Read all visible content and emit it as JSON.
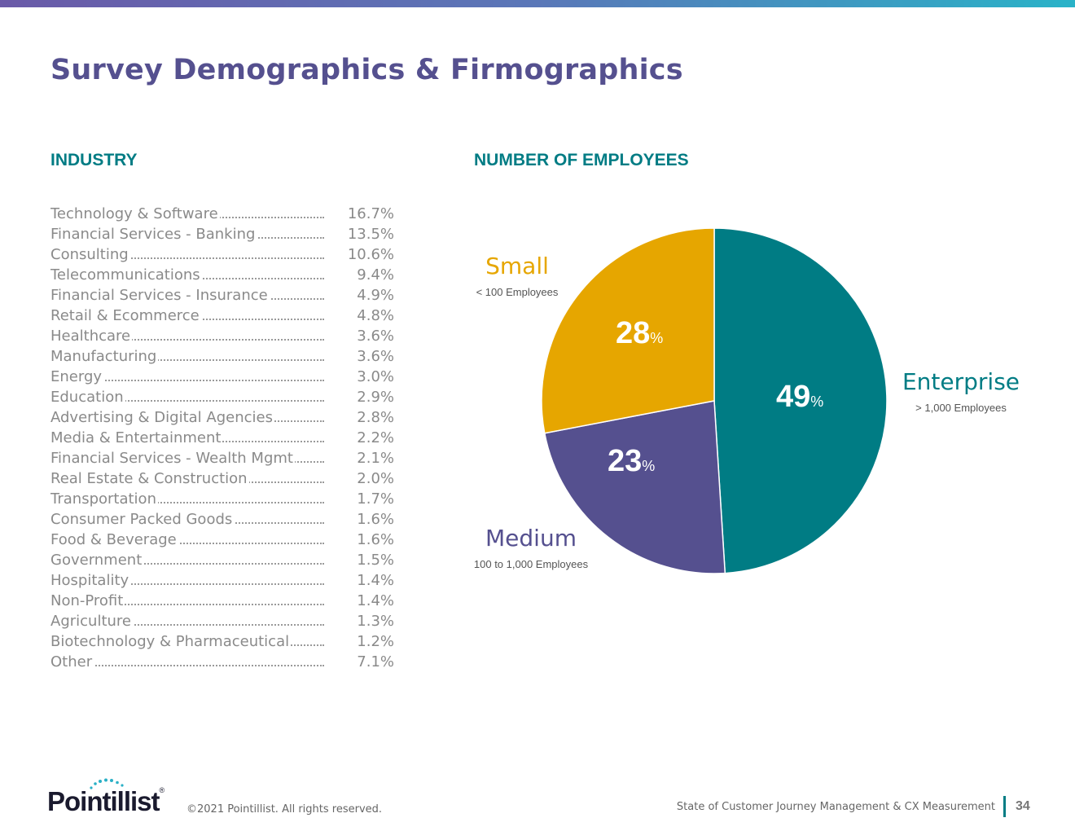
{
  "page": {
    "title": "Survey Demographics & Firmographics"
  },
  "industry": {
    "heading": "INDUSTRY",
    "items": [
      {
        "name": "Technology & Software",
        "value": "16.7%"
      },
      {
        "name": "Financial Services - Banking",
        "value": "13.5%"
      },
      {
        "name": "Consulting",
        "value": "10.6%"
      },
      {
        "name": "Telecommunications",
        "value": "9.4%"
      },
      {
        "name": "Financial Services - Insurance",
        "value": "4.9%"
      },
      {
        "name": "Retail & Ecommerce",
        "value": "4.8%"
      },
      {
        "name": "Healthcare",
        "value": "3.6%"
      },
      {
        "name": "Manufacturing",
        "value": "3.6%"
      },
      {
        "name": "Energy",
        "value": "3.0%"
      },
      {
        "name": "Education",
        "value": "2.9%"
      },
      {
        "name": "Advertising & Digital Agencies",
        "value": "2.8%"
      },
      {
        "name": "Media & Entertainment",
        "value": "2.2%"
      },
      {
        "name": "Financial Services - Wealth Mgmt",
        "value": "2.1%"
      },
      {
        "name": "Real Estate & Construction",
        "value": "2.0%"
      },
      {
        "name": "Transportation",
        "value": "1.7%"
      },
      {
        "name": "Consumer Packed Goods",
        "value": "1.6%"
      },
      {
        "name": "Food & Beverage",
        "value": "1.6%"
      },
      {
        "name": "Government",
        "value": "1.5%"
      },
      {
        "name": "Hospitality",
        "value": "1.4%"
      },
      {
        "name": "Non-Profit",
        "value": "1.4%"
      },
      {
        "name": "Agriculture",
        "value": "1.3%"
      },
      {
        "name": "Biotechnology & Pharmaceutical",
        "value": "1.2%"
      },
      {
        "name": "Other",
        "value": "7.1%"
      }
    ]
  },
  "employees": {
    "heading": "NUMBER OF EMPLOYEES",
    "percent_sign": "%"
  },
  "chart_data": {
    "type": "pie",
    "title": "NUMBER OF EMPLOYEES",
    "start_angle_deg": 0,
    "direction": "clockwise",
    "slices": [
      {
        "name": "Enterprise",
        "sublabel": "> 1,000 Employees",
        "value": 49,
        "color": "#007c84"
      },
      {
        "name": "Medium",
        "sublabel": "100 to 1,000 Employees",
        "value": 23,
        "color": "#55508f"
      },
      {
        "name": "Small",
        "sublabel": "< 100 Employees",
        "value": 28,
        "color": "#e6a600"
      }
    ]
  },
  "footer": {
    "copyright": "©2021 Pointillist. All rights reserved.",
    "report_title": "State of Customer Journey Management & CX Measurement",
    "page_number": "34",
    "logo_text": "Pointillist",
    "logo_mark": "®"
  },
  "colors": {
    "title": "#55508f",
    "heading": "#007c84",
    "enterprise": "#007c84",
    "medium": "#55508f",
    "small": "#e6a600"
  }
}
